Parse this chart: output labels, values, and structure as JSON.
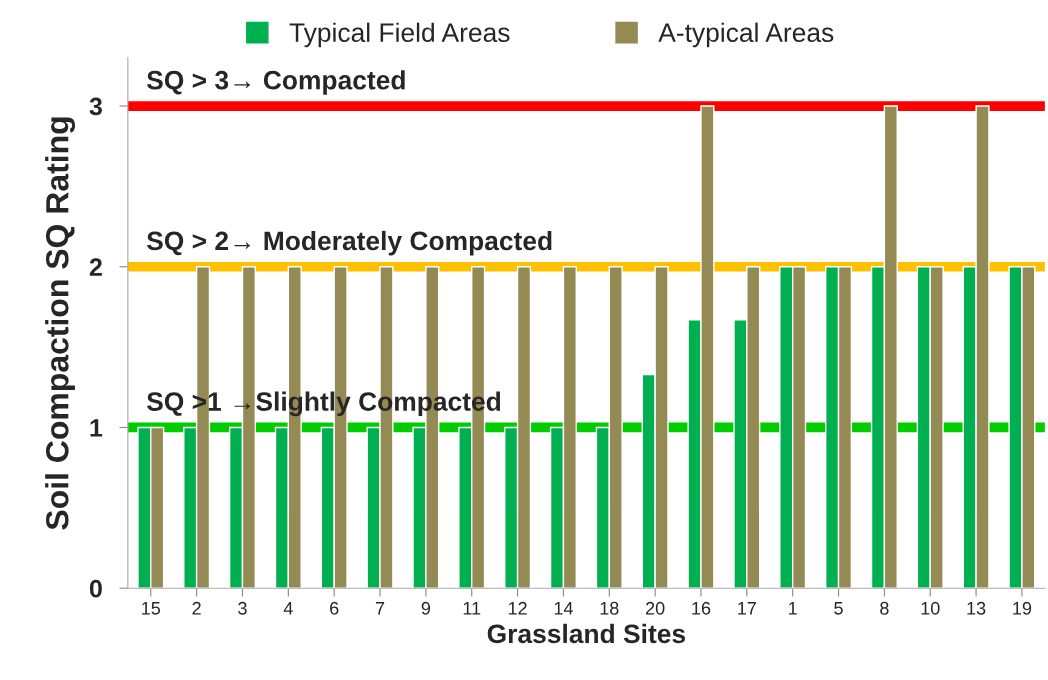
{
  "chart_data": {
    "type": "bar",
    "xlabel": "Grassland Sites",
    "ylabel": "Soil Compaction SQ Rating",
    "categories": [
      "15",
      "2",
      "3",
      "4",
      "6",
      "7",
      "9",
      "11",
      "12",
      "14",
      "18",
      "20",
      "16",
      "17",
      "1",
      "5",
      "8",
      "10",
      "13",
      "19"
    ],
    "series": [
      {
        "name": "Typical Field Areas",
        "color": "#00b050",
        "values": [
          1,
          1,
          1,
          1,
          1,
          1,
          1,
          1,
          1,
          1,
          1,
          1.33,
          1.67,
          1.67,
          2,
          2,
          2,
          2,
          2,
          2
        ]
      },
      {
        "name": "A-typical Areas",
        "color": "#948a54",
        "values": [
          1,
          2,
          2,
          2,
          2,
          2,
          2,
          2,
          2,
          2,
          2,
          2,
          3,
          2,
          2,
          2,
          3,
          2,
          3,
          2
        ]
      }
    ],
    "ylim": [
      0,
      3.3
    ],
    "yticks": [
      0,
      1,
      2,
      3
    ],
    "grid": false,
    "legend": "top",
    "ref_lines": [
      {
        "axis": "y",
        "value": 3,
        "label": "SQ > 3→ Compacted",
        "color": "#ff0000"
      },
      {
        "axis": "y",
        "value": 2,
        "label": "SQ > 2→ Moderately Compacted",
        "color": "#ffc000"
      },
      {
        "axis": "y",
        "value": 1,
        "label": "SQ >1 →Slightly Compacted",
        "color": "#00cc00"
      }
    ]
  }
}
